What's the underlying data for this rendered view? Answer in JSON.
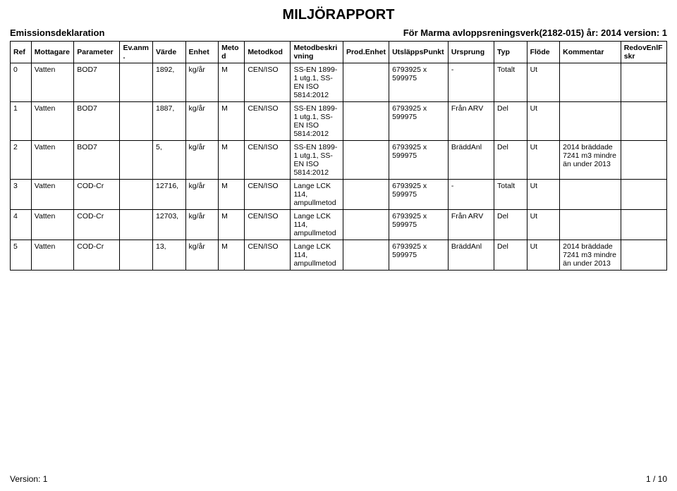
{
  "report_title": "MILJÖRAPPORT",
  "section_title": "Emissionsdeklaration",
  "context_line": "För Marma avloppsreningsverk(2182-015) år: 2014 version: 1",
  "footer": {
    "version": "Version: 1",
    "page": "1 / 10"
  },
  "columns": [
    "Ref",
    "Mottagare",
    "Parameter",
    "Ev.anm.",
    "Värde",
    "Enhet",
    "Metod",
    "Metodkod",
    "Metodbeskrivning",
    "Prod.Enhet",
    "UtsläppsPunkt",
    "Ursprung",
    "Typ",
    "Flöde",
    "Kommentar",
    "RedovEnlFskr"
  ],
  "rows": [
    {
      "ref": "0",
      "mott": "Vatten",
      "param": "BOD7",
      "evanm": "",
      "varde": "1892,",
      "enhet": "kg/år",
      "metod": "M",
      "metodkod": "CEN/ISO",
      "metobes": "SS-EN 1899-1 utg.1, SS-EN ISO 5814:2012",
      "prod": "",
      "utsl": "6793925 x 599975",
      "ursp": "-",
      "typ": "Totalt",
      "flode": "Ut",
      "komm": "",
      "redov": ""
    },
    {
      "ref": "1",
      "mott": "Vatten",
      "param": "BOD7",
      "evanm": "",
      "varde": "1887,",
      "enhet": "kg/år",
      "metod": "M",
      "metodkod": "CEN/ISO",
      "metobes": "SS-EN 1899-1 utg.1, SS-EN ISO 5814:2012",
      "prod": "",
      "utsl": "6793925 x 599975",
      "ursp": "Från ARV",
      "typ": "Del",
      "flode": "Ut",
      "komm": "",
      "redov": ""
    },
    {
      "ref": "2",
      "mott": "Vatten",
      "param": "BOD7",
      "evanm": "",
      "varde": "5,",
      "enhet": "kg/år",
      "metod": "M",
      "metodkod": "CEN/ISO",
      "metobes": "SS-EN 1899-1 utg.1, SS-EN ISO 5814:2012",
      "prod": "",
      "utsl": "6793925 x 599975",
      "ursp": "BräddAnl",
      "typ": "Del",
      "flode": "Ut",
      "komm": "2014 bräddade 7241 m3 mindre än under 2013",
      "redov": ""
    },
    {
      "ref": "3",
      "mott": "Vatten",
      "param": "COD-Cr",
      "evanm": "",
      "varde": "12716,",
      "enhet": "kg/år",
      "metod": "M",
      "metodkod": "CEN/ISO",
      "metobes": "Lange LCK 114, ampullmetod",
      "prod": "",
      "utsl": "6793925 x 599975",
      "ursp": "-",
      "typ": "Totalt",
      "flode": "Ut",
      "komm": "",
      "redov": ""
    },
    {
      "ref": "4",
      "mott": "Vatten",
      "param": "COD-Cr",
      "evanm": "",
      "varde": "12703,",
      "enhet": "kg/år",
      "metod": "M",
      "metodkod": "CEN/ISO",
      "metobes": "Lange LCK 114, ampullmetod",
      "prod": "",
      "utsl": "6793925 x 599975",
      "ursp": "Från ARV",
      "typ": "Del",
      "flode": "Ut",
      "komm": "",
      "redov": ""
    },
    {
      "ref": "5",
      "mott": "Vatten",
      "param": "COD-Cr",
      "evanm": "",
      "varde": "13,",
      "enhet": "kg/år",
      "metod": "M",
      "metodkod": "CEN/ISO",
      "metobes": "Lange LCK 114, ampullmetod",
      "prod": "",
      "utsl": "6793925 x 599975",
      "ursp": "BräddAnl",
      "typ": "Del",
      "flode": "Ut",
      "komm": "2014 bräddade 7241 m3 mindre än under 2013",
      "redov": ""
    }
  ]
}
